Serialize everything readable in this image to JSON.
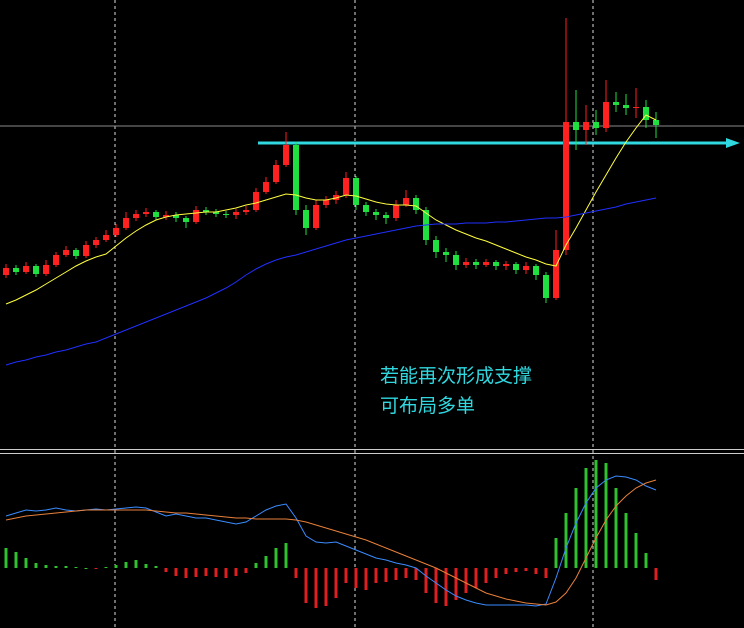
{
  "chart_data": [
    {
      "type": "candlestick",
      "ylim": [
        0,
        450
      ],
      "up_color": "#ff2020",
      "down_color": "#20e040",
      "ohlc": [
        [
          175,
          186,
          172,
          182
        ],
        [
          182,
          185,
          175,
          178
        ],
        [
          178,
          188,
          176,
          184
        ],
        [
          184,
          186,
          173,
          176
        ],
        [
          176,
          190,
          174,
          185
        ],
        [
          185,
          198,
          183,
          195
        ],
        [
          195,
          204,
          193,
          200
        ],
        [
          200,
          202,
          191,
          194
        ],
        [
          194,
          209,
          192,
          205
        ],
        [
          205,
          213,
          202,
          210
        ],
        [
          210,
          220,
          208,
          215
        ],
        [
          215,
          226,
          213,
          222
        ],
        [
          222,
          238,
          220,
          232
        ],
        [
          232,
          240,
          229,
          236
        ],
        [
          236,
          242,
          233,
          238
        ],
        [
          238,
          240,
          230,
          233
        ],
        [
          233,
          239,
          230,
          235
        ],
        [
          235,
          238,
          228,
          232
        ],
        [
          232,
          234,
          222,
          228
        ],
        [
          228,
          244,
          226,
          240
        ],
        [
          240,
          243,
          235,
          238
        ],
        [
          238,
          241,
          233,
          236
        ],
        [
          236,
          239,
          232,
          235
        ],
        [
          235,
          241,
          231,
          238
        ],
        [
          238,
          244,
          235,
          240
        ],
        [
          240,
          262,
          238,
          258
        ],
        [
          258,
          273,
          256,
          268
        ],
        [
          268,
          290,
          266,
          285
        ],
        [
          285,
          318,
          283,
          305
        ],
        [
          305,
          308,
          235,
          240
        ],
        [
          240,
          245,
          215,
          222
        ],
        [
          222,
          250,
          220,
          245
        ],
        [
          245,
          254,
          242,
          250
        ],
        [
          250,
          259,
          246,
          255
        ],
        [
          255,
          278,
          252,
          272
        ],
        [
          272,
          274,
          240,
          245
        ],
        [
          245,
          248,
          234,
          238
        ],
        [
          238,
          241,
          230,
          235
        ],
        [
          235,
          238,
          226,
          232
        ],
        [
          232,
          250,
          229,
          245
        ],
        [
          245,
          260,
          243,
          252
        ],
        [
          252,
          255,
          236,
          240
        ],
        [
          240,
          243,
          205,
          210
        ],
        [
          210,
          214,
          192,
          198
        ],
        [
          198,
          202,
          188,
          195
        ],
        [
          195,
          199,
          180,
          185
        ],
        [
          185,
          192,
          182,
          188
        ],
        [
          188,
          191,
          181,
          185
        ],
        [
          185,
          191,
          183,
          188
        ],
        [
          188,
          190,
          180,
          184
        ],
        [
          184,
          189,
          180,
          186
        ],
        [
          186,
          188,
          176,
          180
        ],
        [
          180,
          188,
          176,
          184
        ],
        [
          184,
          186,
          170,
          175
        ],
        [
          175,
          178,
          147,
          152
        ],
        [
          152,
          220,
          150,
          200
        ],
        [
          200,
          432,
          195,
          328
        ],
        [
          328,
          360,
          300,
          320
        ],
        [
          320,
          345,
          305,
          328
        ],
        [
          328,
          340,
          315,
          322
        ],
        [
          322,
          370,
          318,
          348
        ],
        [
          348,
          358,
          338,
          345
        ],
        [
          345,
          356,
          335,
          342
        ],
        [
          342,
          362,
          332,
          343
        ],
        [
          343,
          350,
          322,
          330
        ],
        [
          330,
          338,
          312,
          325
        ]
      ],
      "series": [
        {
          "color": "#ffff40",
          "values": [
            146,
            150,
            155,
            160,
            166,
            172,
            178,
            184,
            189,
            193,
            196,
            204,
            212,
            219,
            225,
            230,
            233,
            235,
            236,
            237,
            238,
            238,
            240,
            242,
            245,
            247,
            250,
            253,
            256,
            255,
            252,
            250,
            250,
            252,
            255,
            254,
            251,
            248,
            246,
            245,
            245,
            244,
            237,
            230,
            225,
            220,
            216,
            212,
            209,
            205,
            201,
            197,
            193,
            190,
            186,
            184,
            205,
            222,
            240,
            258,
            275,
            292,
            308,
            322,
            335,
            330
          ]
        },
        {
          "color": "#2030ff",
          "values": [
            85,
            88,
            90,
            93,
            95,
            98,
            100,
            103,
            106,
            108,
            112,
            116,
            120,
            124,
            128,
            132,
            136,
            140,
            144,
            148,
            152,
            157,
            162,
            168,
            175,
            181,
            186,
            190,
            193,
            195,
            198,
            201,
            204,
            207,
            210,
            212,
            214,
            216,
            218,
            220,
            222,
            224,
            225,
            226,
            226,
            226,
            227,
            227,
            227,
            228,
            228,
            229,
            230,
            231,
            232,
            232,
            233,
            235,
            237,
            239,
            241,
            243,
            246,
            248,
            250,
            252
          ]
        }
      ],
      "levels": [
        {
          "value": 324,
          "color": "#8a8a8a"
        },
        {
          "value": 307,
          "color": "#30d8e0"
        }
      ],
      "annotation": [
        "若能再次形成支撑",
        "可布局多单"
      ]
    },
    {
      "type": "macd",
      "ylim": [
        -60,
        116
      ],
      "up_color": "#30c030",
      "down_color": "#e02020",
      "values": [
        20,
        16,
        10,
        5,
        3,
        2,
        2,
        1,
        0,
        -1,
        1,
        3,
        6,
        8,
        4,
        2,
        -4,
        -8,
        -10,
        -9,
        -8,
        -9,
        -10,
        -8,
        -5,
        5,
        12,
        20,
        25,
        -10,
        -35,
        -40,
        -38,
        -30,
        -15,
        -20,
        -22,
        -15,
        -14,
        -12,
        -10,
        -12,
        -25,
        -35,
        -38,
        -32,
        -25,
        -20,
        -15,
        -10,
        -6,
        -4,
        -3,
        -6,
        -10,
        30,
        55,
        80,
        100,
        108,
        105,
        80,
        55,
        35,
        15,
        -12
      ],
      "series": [
        {
          "color": "#3a8cff",
          "values": [
            52,
            55,
            58,
            57,
            58,
            60,
            58,
            57,
            58,
            59,
            58,
            59,
            60,
            61,
            60,
            56,
            52,
            54,
            52,
            50,
            50,
            48,
            46,
            44,
            46,
            52,
            58,
            62,
            64,
            50,
            32,
            26,
            25,
            26,
            22,
            18,
            14,
            10,
            8,
            5,
            3,
            0,
            -8,
            -15,
            -22,
            -28,
            -32,
            -35,
            -37,
            -37,
            -37,
            -37,
            -37,
            -38,
            -36,
            -10,
            20,
            45,
            65,
            80,
            88,
            92,
            91,
            88,
            82,
            78
          ]
        },
        {
          "color": "#e8803a",
          "values": [
            48,
            50,
            52,
            53,
            54,
            55,
            56,
            57,
            58,
            58,
            58,
            58,
            58,
            58,
            58,
            57,
            56,
            55,
            55,
            54,
            53,
            52,
            51,
            50,
            50,
            49,
            49,
            49,
            49,
            48,
            46,
            43,
            40,
            37,
            34,
            31,
            28,
            24,
            20,
            16,
            12,
            8,
            4,
            0,
            -5,
            -10,
            -15,
            -20,
            -25,
            -28,
            -31,
            -33,
            -35,
            -36,
            -37,
            -34,
            -25,
            -10,
            10,
            30,
            48,
            62,
            72,
            80,
            85,
            88
          ]
        }
      ]
    }
  ]
}
